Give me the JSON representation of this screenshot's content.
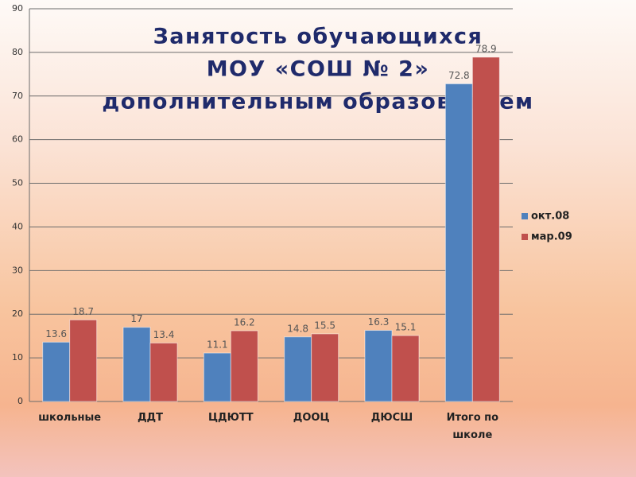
{
  "chart_data": {
    "type": "bar",
    "title": [
      "Занятость обучающихся",
      "МОУ «СОШ № 2»",
      "дополнительным образованием"
    ],
    "categories": [
      "школьные",
      "ДДТ",
      "ЦДЮТТ",
      "ДООЦ",
      "ДЮСШ",
      "Итого по школе"
    ],
    "series": [
      {
        "name": "окт.08",
        "color": "#4f81bd",
        "values": [
          13.6,
          17,
          11.1,
          14.8,
          16.3,
          72.8
        ]
      },
      {
        "name": "мар.09",
        "color": "#c0504d",
        "values": [
          18.7,
          13.4,
          16.2,
          15.5,
          15.1,
          78.9
        ]
      }
    ],
    "ylim": [
      0,
      90
    ],
    "yticks": [
      0,
      10,
      20,
      30,
      40,
      50,
      60,
      70,
      80,
      90
    ],
    "grid": true,
    "legend": "right"
  }
}
